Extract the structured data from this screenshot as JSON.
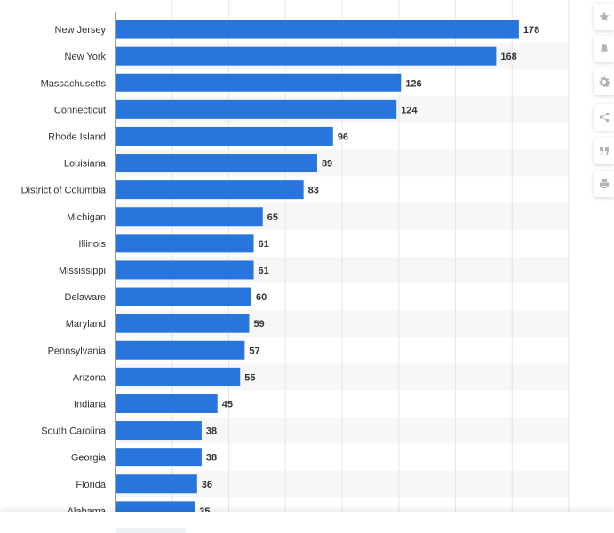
{
  "chart_data": {
    "type": "bar",
    "orientation": "horizontal",
    "categories": [
      "New Jersey",
      "New York",
      "Massachusetts",
      "Connecticut",
      "Rhode Island",
      "Louisiana",
      "District of Columbia",
      "Michigan",
      "Illinois",
      "Mississippi",
      "Delaware",
      "Maryland",
      "Pennsylvania",
      "Arizona",
      "Indiana",
      "South Carolina",
      "Georgia",
      "Florida",
      "Alabama"
    ],
    "values": [
      178,
      168,
      126,
      124,
      96,
      89,
      83,
      65,
      61,
      61,
      60,
      59,
      57,
      55,
      45,
      38,
      38,
      36,
      35
    ],
    "value_labels": [
      "178",
      "168",
      "126",
      "124",
      "96",
      "89",
      "83",
      "65",
      "61",
      "61",
      "60",
      "59",
      "57",
      "55",
      "45",
      "38",
      "38",
      "36",
      "35"
    ],
    "xlim": [
      0,
      200
    ],
    "grid": true,
    "bar_color": "#2876dd",
    "stripe_color": "#f7f7f7",
    "grid_color": "#e6e6e6"
  },
  "toolbar": {
    "icons": [
      "star-icon",
      "bell-icon",
      "gear-icon",
      "share-icon",
      "quote-icon",
      "print-icon"
    ]
  }
}
